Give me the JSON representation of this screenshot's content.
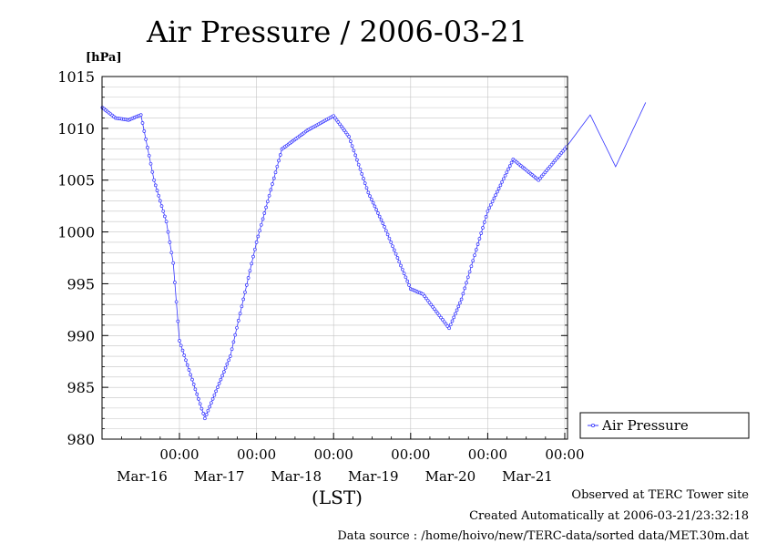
{
  "chart_data": {
    "type": "line",
    "title": "Air Pressure / 2006-03-21",
    "ylabel": "[hPa]",
    "xlabel": "(LST)",
    "ylim": [
      980,
      1015
    ],
    "yticks": [
      980,
      985,
      990,
      995,
      1000,
      1005,
      1010,
      1015
    ],
    "xticks": [
      {
        "time": "00:00",
        "date": "Mar-16"
      },
      {
        "time": "00:00",
        "date": "Mar-17"
      },
      {
        "time": "00:00",
        "date": "Mar-18"
      },
      {
        "time": "00:00",
        "date": "Mar-19"
      },
      {
        "time": "00:00",
        "date": "Mar-20"
      },
      {
        "time": "00:00",
        "date": "Mar-21"
      }
    ],
    "legend": {
      "position": "right",
      "label": "Air Pressure"
    },
    "grid": true,
    "series": [
      {
        "name": "Air Pressure",
        "color": "#3333ff",
        "t": [
          -1,
          -0.83,
          -0.66,
          -0.5,
          -0.33,
          -0.17,
          -0.08,
          0,
          0.33,
          0.66,
          1,
          1.33,
          1.66,
          2,
          2.2,
          2.45,
          2.66,
          3,
          3.16,
          3.5,
          3.66,
          4,
          4.33,
          4.66,
          5,
          5.33,
          5.66,
          6.05
        ],
        "values": [
          1012,
          1011,
          1010.8,
          1011.3,
          1005,
          1001,
          997,
          989.5,
          982,
          988,
          999,
          1008,
          1009.8,
          1011.2,
          1009.2,
          1003.8,
          1000.5,
          994.5,
          994,
          990.7,
          993.5,
          1002,
          1007,
          1005,
          1008,
          1011.3,
          1006.3,
          1012.5
        ]
      }
    ]
  },
  "notes": {
    "observed": "Observed at TERC Tower site",
    "created": "Created Automatically at 2006-03-21/23:32:18",
    "source": "Data source : /home/hoivo/new/TERC-data/sorted  data/MET.30m.dat"
  }
}
